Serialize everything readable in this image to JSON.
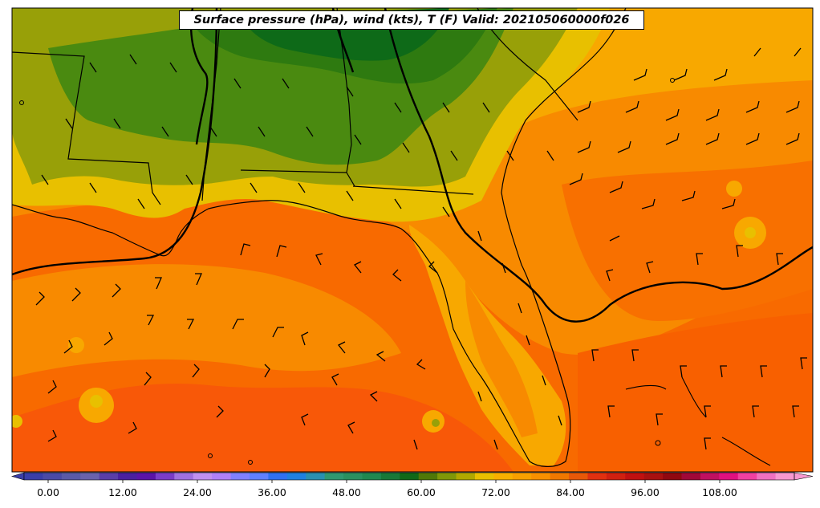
{
  "title": "Surface pressure (hPa), wind (kts), T (F) Valid: 202105060000f026",
  "colorbar": {
    "tick_labels": [
      "0.00",
      "12.00",
      "24.00",
      "36.00",
      "48.00",
      "60.00",
      "72.00",
      "84.00",
      "96.00",
      "108.00"
    ],
    "colors": [
      "#3a3ea8",
      "#4a4aa6",
      "#5a5aa8",
      "#6a62ac",
      "#5a3ea8",
      "#4a20a0",
      "#5a14a8",
      "#7a3cc8",
      "#a070e0",
      "#c090f0",
      "#b080f8",
      "#8080ff",
      "#6080ff",
      "#3070f0",
      "#2080e0",
      "#2a90b0",
      "#309870",
      "#2a9060",
      "#208850",
      "#187838",
      "#106818",
      "#507808",
      "#809808",
      "#b0a800",
      "#e8c000",
      "#f8b000",
      "#f8a000",
      "#f89000",
      "#f07800",
      "#e85808",
      "#e03010",
      "#d02010",
      "#c01010",
      "#a81010",
      "#900810",
      "#a00838",
      "#c01060",
      "#e01080",
      "#f040a0",
      "#f070c0",
      "#f898d0"
    ]
  },
  "legend_colors": {
    "temp_55_60": "#4a8a10",
    "temp_60_65": "#98a008",
    "temp_65_70": "#e8c000",
    "temp_70_75": "#f8a800",
    "temp_75_80": "#f88a00",
    "temp_80_85": "#f86a00",
    "temp_58": "#2e7a10",
    "temp_56": "#0e6a18"
  },
  "map": {
    "features": [
      "state-borders",
      "coastline",
      "isobars",
      "wind-barbs",
      "temperature-fill"
    ]
  }
}
